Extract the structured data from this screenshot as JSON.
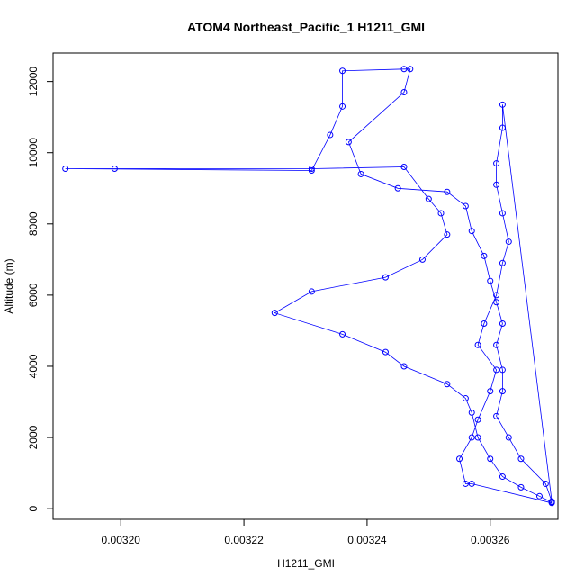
{
  "chart_data": {
    "type": "line",
    "title": "ATOM4 Northeast_Pacific_1 H1211_GMI",
    "xlabel": "H1211_GMI",
    "ylabel": "Altitude (m)",
    "xlim": [
      0.003189,
      0.003271
    ],
    "ylim": [
      -300,
      12800
    ],
    "x_ticks": [
      0.0032,
      0.00322,
      0.00324,
      0.00326
    ],
    "x_tick_labels": [
      "0.00320",
      "0.00322",
      "0.00324",
      "0.00326"
    ],
    "y_ticks": [
      0,
      2000,
      4000,
      6000,
      8000,
      10000,
      12000
    ],
    "y_tick_labels": [
      "0",
      "2000",
      "4000",
      "6000",
      "8000",
      "10000",
      "12000"
    ],
    "series_color": "#0000ff",
    "marker": "open-circle",
    "points": [
      [
        0.00327,
        180
      ],
      [
        0.003268,
        350
      ],
      [
        0.003265,
        600
      ],
      [
        0.003262,
        900
      ],
      [
        0.00326,
        1400
      ],
      [
        0.003258,
        2000
      ],
      [
        0.003257,
        2700
      ],
      [
        0.003256,
        3100
      ],
      [
        0.003253,
        3500
      ],
      [
        0.003246,
        4000
      ],
      [
        0.003243,
        4400
      ],
      [
        0.003236,
        4900
      ],
      [
        0.003225,
        5500
      ],
      [
        0.003231,
        6100
      ],
      [
        0.003243,
        6500
      ],
      [
        0.003249,
        7000
      ],
      [
        0.003253,
        7700
      ],
      [
        0.003252,
        8300
      ],
      [
        0.00325,
        8700
      ],
      [
        0.003246,
        9600
      ],
      [
        0.003231,
        9550
      ],
      [
        0.003199,
        9550
      ],
      [
        0.003191,
        9550
      ],
      [
        0.003231,
        9500
      ],
      [
        0.003234,
        10500
      ],
      [
        0.003236,
        11300
      ],
      [
        0.003236,
        12300
      ],
      [
        0.003246,
        12350
      ],
      [
        0.003247,
        12350
      ],
      [
        0.003246,
        11700
      ],
      [
        0.003237,
        10300
      ],
      [
        0.003239,
        9400
      ],
      [
        0.003245,
        9000
      ],
      [
        0.003253,
        8900
      ],
      [
        0.003256,
        8500
      ],
      [
        0.003257,
        7800
      ],
      [
        0.003259,
        7100
      ],
      [
        0.00326,
        6400
      ],
      [
        0.003261,
        5800
      ],
      [
        0.003262,
        5200
      ],
      [
        0.003261,
        4600
      ],
      [
        0.003262,
        3900
      ],
      [
        0.003262,
        3300
      ],
      [
        0.003261,
        2600
      ],
      [
        0.003263,
        2000
      ],
      [
        0.003265,
        1400
      ],
      [
        0.003269,
        700
      ],
      [
        0.00327,
        200
      ],
      [
        0.003262,
        11350
      ],
      [
        0.003262,
        10700
      ],
      [
        0.003261,
        9700
      ],
      [
        0.003261,
        9100
      ],
      [
        0.003262,
        8300
      ],
      [
        0.003263,
        7500
      ],
      [
        0.003262,
        6900
      ],
      [
        0.003261,
        6000
      ],
      [
        0.003259,
        5200
      ],
      [
        0.003258,
        4600
      ],
      [
        0.003261,
        3900
      ],
      [
        0.00326,
        3300
      ],
      [
        0.003258,
        2500
      ],
      [
        0.003257,
        2000
      ],
      [
        0.003255,
        1400
      ],
      [
        0.003256,
        700
      ],
      [
        0.003257,
        700
      ],
      [
        0.00327,
        160
      ]
    ]
  }
}
